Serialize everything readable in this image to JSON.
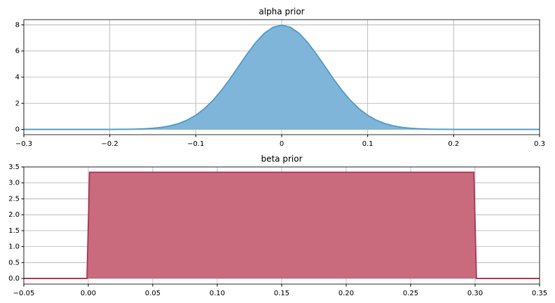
{
  "chart_data": [
    {
      "type": "area",
      "title": "alpha prior",
      "color": "#7fb5d8",
      "edge": "#5b9ec8",
      "x": [
        -0.3,
        -0.29,
        -0.28,
        -0.27,
        -0.26,
        -0.25,
        -0.24,
        -0.23,
        -0.22,
        -0.21,
        -0.2,
        -0.19,
        -0.18,
        -0.17,
        -0.16,
        -0.15,
        -0.14,
        -0.13,
        -0.12,
        -0.11,
        -0.1,
        -0.09,
        -0.08,
        -0.07,
        -0.06,
        -0.05,
        -0.04,
        -0.03,
        -0.02,
        -0.01,
        0,
        0.01,
        0.02,
        0.03,
        0.04,
        0.05,
        0.06,
        0.07,
        0.08,
        0.09,
        0.1,
        0.11,
        0.12,
        0.13,
        0.14,
        0.15,
        0.16,
        0.17,
        0.18,
        0.19,
        0.2,
        0.21,
        0.22,
        0.23,
        0.24,
        0.25,
        0.26,
        0.27,
        0.28,
        0.29,
        0.3
      ],
      "values": [
        0,
        0,
        0,
        0,
        0,
        0,
        0,
        0,
        0,
        0.001,
        0.003,
        0.006,
        0.012,
        0.025,
        0.048,
        0.089,
        0.158,
        0.272,
        0.448,
        0.709,
        1.08,
        1.579,
        2.218,
        2.995,
        3.884,
        4.839,
        5.794,
        6.665,
        7.366,
        7.821,
        7.979,
        7.821,
        7.366,
        6.665,
        5.794,
        4.839,
        3.884,
        2.995,
        2.218,
        1.579,
        1.08,
        0.709,
        0.448,
        0.272,
        0.158,
        0.089,
        0.048,
        0.025,
        0.012,
        0.006,
        0.003,
        0.001,
        0,
        0,
        0,
        0,
        0,
        0,
        0,
        0,
        0
      ],
      "xlim": [
        -0.3,
        0.3
      ],
      "xticks": [
        {
          "value": -0.3,
          "label": "−0.3"
        },
        {
          "value": -0.2,
          "label": "−0.2"
        },
        {
          "value": -0.1,
          "label": "−0.1"
        },
        0,
        0.1,
        0.2,
        0.3
      ],
      "ylim": [
        -0.4,
        8.4
      ],
      "yticks": [
        0,
        2,
        4,
        6,
        8
      ],
      "grid": true
    },
    {
      "type": "area",
      "title": "beta prior",
      "color": "#c96b7c",
      "edge": "#ad3f5c",
      "x": [
        -0.05,
        -0.001,
        0.001,
        0.299,
        0.301,
        0.35
      ],
      "values": [
        0,
        0,
        3.333,
        3.333,
        0,
        0
      ],
      "xlim": [
        -0.05,
        0.35
      ],
      "xticks": [
        {
          "value": -0.05,
          "label": "−0.05"
        },
        {
          "value": 0,
          "label": "0.00"
        },
        0.05,
        {
          "value": 0.1,
          "label": "0.10"
        },
        0.15,
        {
          "value": 0.2,
          "label": "0.20"
        },
        0.25,
        {
          "value": 0.3,
          "label": "0.30"
        },
        0.35
      ],
      "ylim": [
        -0.175,
        3.5
      ],
      "yticks": [
        {
          "value": 0,
          "label": "0.0"
        },
        0.5,
        {
          "value": 1,
          "label": "1.0"
        },
        1.5,
        {
          "value": 2,
          "label": "2.0"
        },
        2.5,
        {
          "value": 3,
          "label": "3.0"
        },
        3.5
      ],
      "grid": true
    }
  ]
}
